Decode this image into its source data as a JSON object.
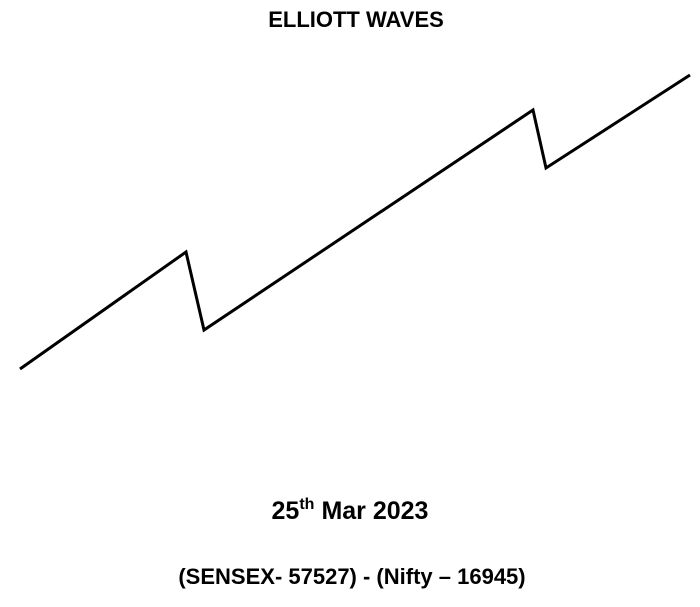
{
  "header": {
    "title": "ELLIOTT WAVES"
  },
  "date": {
    "day": "25",
    "suffix": "th",
    "rest": "Mar 2023"
  },
  "footer": {
    "indices": "(SENSEX- 57527) - (Nifty – 16945)"
  }
}
